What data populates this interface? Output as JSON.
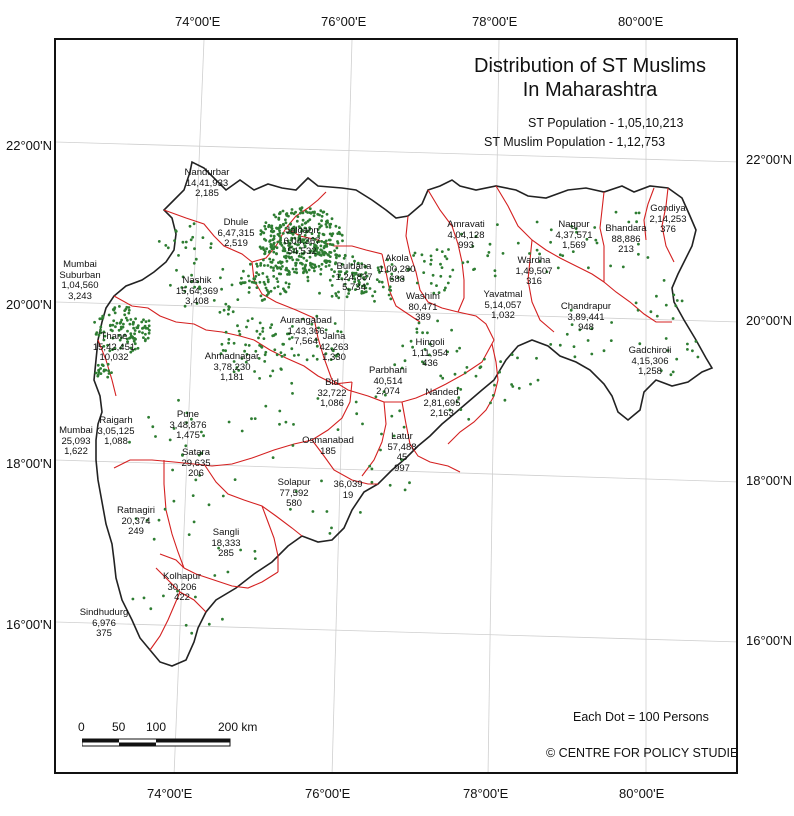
{
  "map": {
    "title_line1": "Distribution of ST Muslims",
    "title_line2": "In Maharashtra",
    "st_population": "ST Population - 1,05,10,213",
    "st_muslim_population": "ST Muslim Population - 1,12,753",
    "dot_note": "Each Dot = 100 Persons",
    "credit": "© CENTRE FOR POLICY STUDIES",
    "colors": {
      "boundary": "#d42020",
      "outline": "#222222",
      "dot": "#2e7d32",
      "grid": "#cccccc"
    }
  },
  "graticule": {
    "top": [
      "74°00'E",
      "76°00'E",
      "78°00'E",
      "80°00'E"
    ],
    "bottom": [
      "74°00'E",
      "76°00'E",
      "78°00'E",
      "80°00'E"
    ],
    "left": [
      "22°00'N",
      "20°00'N",
      "18°00'N",
      "16°00'N"
    ],
    "right": [
      "22°00'N",
      "20°00'N",
      "18°00'N",
      "16°00'N"
    ]
  },
  "scale": {
    "t0": "0",
    "t1": "50",
    "t2": "100",
    "t3": "200 km"
  },
  "districts": [
    {
      "name": "Nandurbar",
      "pop": "14,41,933",
      "muslim": "2,185"
    },
    {
      "name": "Dhule",
      "pop": "6,47,315",
      "muslim": "2,519"
    },
    {
      "name": "Jalgaon",
      "pop": "6,04,367",
      "muslim": "54,532"
    },
    {
      "name": "Nashik",
      "pop": "15,64,369",
      "muslim": "3,408"
    },
    {
      "name": "Buldana",
      "pop": "1,24,837",
      "muslim": "5,734"
    },
    {
      "name": "Akola",
      "pop": "1,00,280",
      "muslim": "688"
    },
    {
      "name": "Amravati",
      "pop": "4,04,128",
      "muslim": "993"
    },
    {
      "name": "Nagpur",
      "pop": "4,37,571",
      "muslim": "1,569"
    },
    {
      "name": "Bhandara",
      "pop": "88,886",
      "muslim": "213"
    },
    {
      "name": "Gondiya",
      "pop": "2,14,253",
      "muslim": "376"
    },
    {
      "name": "Wardha",
      "pop": "1,49,507",
      "muslim": "316"
    },
    {
      "name": "Washim",
      "pop": "80,471",
      "muslim": "389"
    },
    {
      "name": "Yavatmal",
      "pop": "5,14,057",
      "muslim": "1,032"
    },
    {
      "name": "Chandrapur",
      "pop": "3,89,441",
      "muslim": "948"
    },
    {
      "name": "Gadchiroli",
      "pop": "4,15,306",
      "muslim": "1,258"
    },
    {
      "name": "Mumbai Suburban",
      "line1": "Mumbai",
      "line2": "Suburban",
      "pop": "1,04,560",
      "muslim": "3,243"
    },
    {
      "name": "Thane",
      "pop": "15,42,451",
      "muslim": "10,032"
    },
    {
      "name": "Aurangabad",
      "pop": "1,43,366",
      "muslim": "7,564"
    },
    {
      "name": "Jalna",
      "pop": "42,263",
      "muslim": "1,330"
    },
    {
      "name": "Hingoli",
      "pop": "1,11,954",
      "muslim": "436"
    },
    {
      "name": "Parbhani",
      "pop": "40,514",
      "muslim": "2,074"
    },
    {
      "name": "Ahmadnagar",
      "pop": "3,78,230",
      "muslim": "1,181"
    },
    {
      "name": "Bid",
      "pop": "32,722",
      "muslim": "1,086"
    },
    {
      "name": "Nanded",
      "pop": "2,81,695",
      "muslim": "2,163"
    },
    {
      "name": "Mumbai",
      "pop": "25,093",
      "muslim": "1,622"
    },
    {
      "name": "Raigarh",
      "pop": "3,05,125",
      "muslim": "1,088"
    },
    {
      "name": "Pune",
      "pop": "3,48,876",
      "muslim": "1,475"
    },
    {
      "name": "Osmanabad",
      "pop": "185",
      "muslim": ""
    },
    {
      "name": "Latur",
      "pop": "57,488",
      "muslim": "45",
      "extra": "997"
    },
    {
      "name": "Satara",
      "pop": "29,635",
      "muslim": "206"
    },
    {
      "name": "Solapur",
      "pop": "77,592",
      "muslim": "580"
    },
    {
      "name": "",
      "pop": "36,039",
      "muslim": "19"
    },
    {
      "name": "Ratnagiri",
      "pop": "20,374",
      "muslim": "249"
    },
    {
      "name": "Sangli",
      "pop": "18,333",
      "muslim": "285"
    },
    {
      "name": "Kolhapur",
      "pop": "30,206",
      "muslim": "422"
    },
    {
      "name": "Sindhudurg",
      "pop": "6,976",
      "muslim": "375"
    }
  ]
}
